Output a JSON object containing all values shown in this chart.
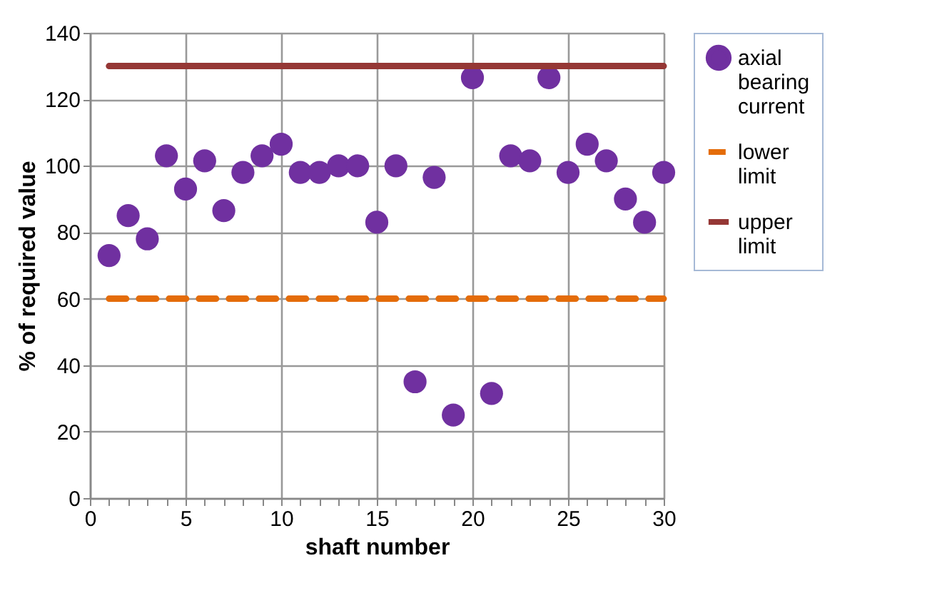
{
  "chart_data": {
    "type": "scatter",
    "xlabel": "shaft number",
    "ylabel": "% of required value",
    "x": [
      1,
      2,
      3,
      4,
      5,
      6,
      7,
      8,
      9,
      10,
      11,
      12,
      13,
      14,
      15,
      16,
      17,
      18,
      19,
      20,
      21,
      22,
      23,
      24,
      25,
      26,
      27,
      28,
      29,
      30
    ],
    "series": [
      {
        "name": "axial bearing current",
        "color": "#7030a0",
        "type": "scatter",
        "marker": "circle",
        "values": [
          73,
          85,
          78,
          103,
          93,
          101.5,
          86.5,
          98,
          103,
          106.5,
          98,
          98,
          100,
          100,
          83,
          100,
          35,
          96.5,
          25,
          126.5,
          31.5,
          103,
          101.5,
          126.5,
          98,
          106.5,
          101.5,
          90,
          83,
          98
        ]
      },
      {
        "name": "lower limit",
        "color": "#e46c0a",
        "type": "line",
        "line_style": "dashed",
        "values": [
          60,
          60,
          60,
          60,
          60,
          60,
          60,
          60,
          60,
          60,
          60,
          60,
          60,
          60,
          60,
          60,
          60,
          60,
          60,
          60,
          60,
          60,
          60,
          60,
          60,
          60,
          60,
          60,
          60,
          60
        ]
      },
      {
        "name": "upper limit",
        "color": "#953735",
        "type": "line",
        "line_style": "solid",
        "values": [
          130,
          130,
          130,
          130,
          130,
          130,
          130,
          130,
          130,
          130,
          130,
          130,
          130,
          130,
          130,
          130,
          130,
          130,
          130,
          130,
          130,
          130,
          130,
          130,
          130,
          130,
          130,
          130,
          130,
          130
        ]
      }
    ],
    "xlim": [
      0,
      30
    ],
    "xticks": [
      0,
      {
        "value": 1,
        "label": null
      },
      {
        "value": 2,
        "label": null
      },
      {
        "value": 3,
        "label": null
      },
      {
        "value": 4,
        "label": null
      },
      5,
      {
        "value": 6,
        "label": null
      },
      {
        "value": 7,
        "label": null
      },
      {
        "value": 8,
        "label": null
      },
      {
        "value": 9,
        "label": null
      },
      10,
      {
        "value": 11,
        "label": null
      },
      {
        "value": 12,
        "label": null
      },
      {
        "value": 13,
        "label": null
      },
      {
        "value": 14,
        "label": null
      },
      15,
      {
        "value": 16,
        "label": null
      },
      {
        "value": 17,
        "label": null
      },
      {
        "value": 18,
        "label": null
      },
      {
        "value": 19,
        "label": null
      },
      20,
      {
        "value": 21,
        "label": null
      },
      {
        "value": 22,
        "label": null
      },
      {
        "value": 23,
        "label": null
      },
      {
        "value": 24,
        "label": null
      },
      25,
      {
        "value": 26,
        "label": null
      },
      {
        "value": 27,
        "label": null
      },
      {
        "value": 28,
        "label": null
      },
      {
        "value": 29,
        "label": null
      },
      30
    ],
    "ylim": [
      0,
      140
    ],
    "yticks": [
      0,
      20,
      40,
      60,
      80,
      100,
      120,
      140
    ],
    "grid": true,
    "legend": "right"
  }
}
